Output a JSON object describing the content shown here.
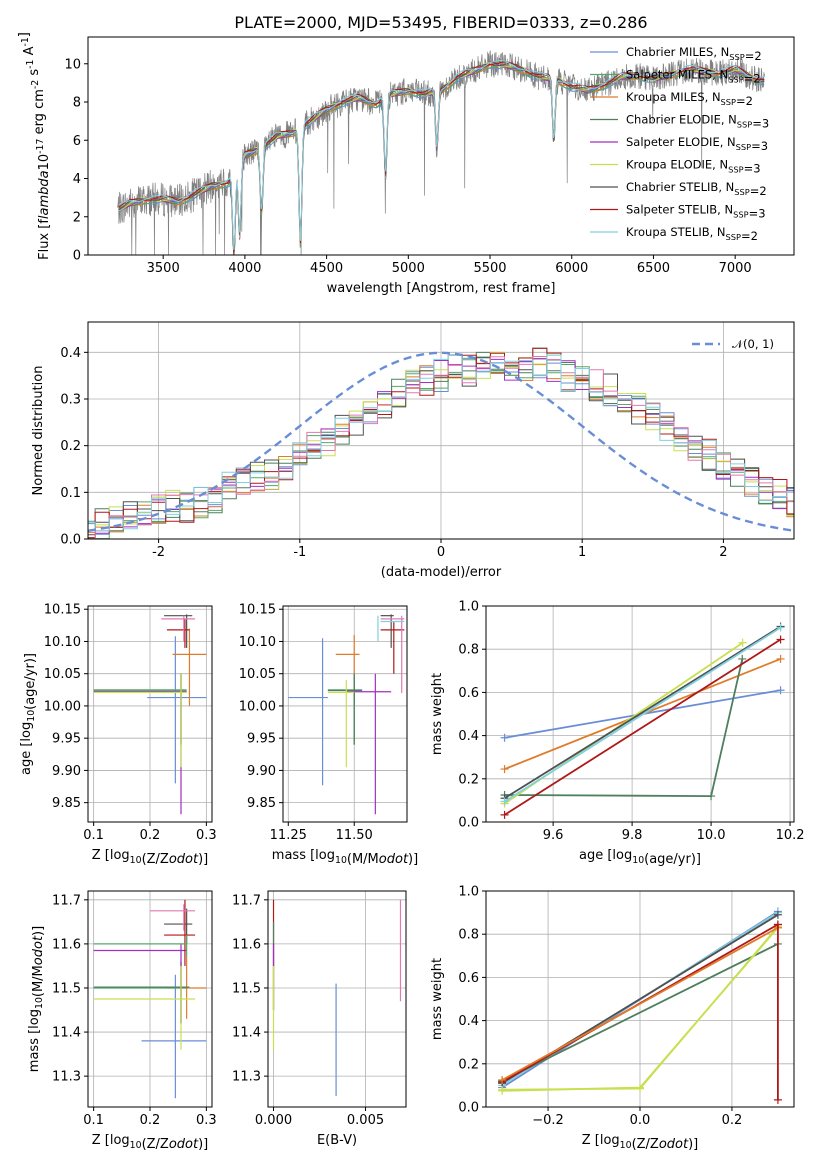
{
  "chart_data": [
    {
      "id": "spectrum",
      "type": "line",
      "title": "PLATE=2000, MJD=53495, FIBERID=0333, z=0.286",
      "xlabel": "wavelength [Angstrom, rest frame]",
      "ylabel": "Flux [f$_\\lambda$10$^{-17}$ erg cm$^{-2}$ s$^{-1}$ A$^{-1}$]",
      "xlim": [
        3040,
        7360
      ],
      "ylim": [
        0,
        11.4
      ],
      "xticks": [
        3500,
        4000,
        4500,
        5000,
        5500,
        6000,
        6500,
        7000
      ],
      "yticks": [
        0,
        2,
        4,
        6,
        8,
        10
      ],
      "grid": false,
      "legend_position": "upper-right",
      "data_color": "#808080",
      "data_profile": {
        "x": [
          3230,
          3300,
          3400,
          3500,
          3600,
          3700,
          3800,
          3900,
          4000,
          4100,
          4200,
          4300,
          4400,
          4500,
          4600,
          4700,
          4800,
          4900,
          5000,
          5100,
          5200,
          5300,
          5400,
          5500,
          5600,
          5700,
          5800,
          5900,
          6000,
          6100,
          6200,
          6300,
          6400,
          6500,
          6600,
          6700,
          6800,
          6900,
          7000,
          7100,
          7180
        ],
        "y": [
          2.4,
          2.7,
          2.9,
          2.9,
          2.8,
          3.2,
          3.6,
          3.8,
          5.2,
          5.6,
          6.2,
          6.4,
          7.0,
          7.6,
          8.0,
          8.2,
          7.9,
          8.4,
          8.6,
          8.4,
          8.6,
          9.3,
          9.6,
          10.0,
          9.9,
          9.7,
          9.3,
          9.2,
          8.8,
          8.6,
          8.9,
          9.3,
          9.4,
          9.2,
          9.4,
          9.7,
          9.6,
          9.5,
          9.7,
          9.3,
          9.1
        ]
      },
      "series": [
        {
          "name": "Chabrier MILES, N$_{SSP}$=2",
          "color": "#6a8ed6",
          "lw": 1.0
        },
        {
          "name": "Salpeter MILES, N$_{SSP}$=2",
          "color": "#55a868",
          "lw": 1.0
        },
        {
          "name": "Kroupa MILES, N$_{SSP}$=2",
          "color": "#e07b2a",
          "lw": 1.0
        },
        {
          "name": "Chabrier ELODIE, N$_{SSP}$=3",
          "color": "#4e7f5e",
          "lw": 0.8
        },
        {
          "name": "Salpeter ELODIE, N$_{SSP}$=3",
          "color": "#a030c0",
          "lw": 0.8
        },
        {
          "name": "Kroupa ELODIE, N$_{SSP}$=3",
          "color": "#c8e050",
          "lw": 0.8
        },
        {
          "name": "Chabrier STELIB, N$_{SSP}$=2",
          "color": "#505050",
          "lw": 0.8
        },
        {
          "name": "Salpeter STELIB, N$_{SSP}$=3",
          "color": "#b01818",
          "lw": 1.0
        },
        {
          "name": "Kroupa STELIB, N$_{SSP}$=2",
          "color": "#80d0e0",
          "lw": 1.0
        }
      ]
    },
    {
      "id": "residual_hist",
      "type": "line",
      "xlabel": "(data-model)/error",
      "ylabel": "Normed distribution",
      "xlim": [
        -2.5,
        2.5
      ],
      "ylim": [
        0,
        0.465
      ],
      "xticks": [
        -2,
        -1,
        0,
        1,
        2
      ],
      "yticks": [
        0.0,
        0.1,
        0.2,
        0.3,
        0.4
      ],
      "grid": true,
      "legend_position": "upper-right",
      "gaussian": {
        "name": "$\\mathcal{N}(0,1)$",
        "mean": 0,
        "sigma": 1,
        "color": "#6a8ed6"
      },
      "bin_width": 0.1,
      "bin_start": -2.55,
      "base_hist": [
        0.03,
        0.03,
        0.04,
        0.05,
        0.06,
        0.06,
        0.07,
        0.07,
        0.08,
        0.09,
        0.11,
        0.12,
        0.13,
        0.14,
        0.16,
        0.18,
        0.2,
        0.21,
        0.23,
        0.25,
        0.27,
        0.29,
        0.31,
        0.33,
        0.34,
        0.35,
        0.36,
        0.36,
        0.37,
        0.37,
        0.36,
        0.37,
        0.38,
        0.37,
        0.35,
        0.34,
        0.33,
        0.32,
        0.3,
        0.28,
        0.26,
        0.24,
        0.22,
        0.2,
        0.18,
        0.16,
        0.14,
        0.12,
        0.11,
        0.1,
        0.08,
        0.07
      ],
      "series": [
        {
          "color": "#6a8ed6"
        },
        {
          "color": "#e07b2a"
        },
        {
          "color": "#55a868"
        },
        {
          "color": "#4e7f5e"
        },
        {
          "color": "#a030c0"
        },
        {
          "color": "#c8e050"
        },
        {
          "color": "#505050"
        },
        {
          "color": "#b01818"
        },
        {
          "color": "#e07ab0"
        },
        {
          "color": "#80d0e0"
        }
      ]
    },
    {
      "id": "age_vs_Z",
      "type": "scatter",
      "xlabel": "Z [log$_{10}$(Z/Z$_\\odot$)]",
      "ylabel": "age  [log$_{10}$(age/yr)]",
      "xlim": [
        0.09,
        0.31
      ],
      "ylim": [
        9.82,
        10.155
      ],
      "xticks": [
        0.1,
        0.2,
        0.3
      ],
      "yticks": [
        9.85,
        9.9,
        9.95,
        10.0,
        10.05,
        10.1,
        10.15
      ],
      "grid": true,
      "points": [
        {
          "x": 0.245,
          "xerr": [
            0.195,
            0.3
          ],
          "y": 10.013,
          "yerr": [
            9.88,
            10.108
          ],
          "color": "#6a8ed6"
        },
        {
          "x": 0.27,
          "xerr": [
            0.24,
            0.3
          ],
          "y": 10.08,
          "yerr": [
            10.0,
            10.12
          ],
          "color": "#e07b2a"
        },
        {
          "x": 0.255,
          "xerr": [
            0.1,
            0.265
          ],
          "y": 10.025,
          "yerr": [
            9.94,
            10.05
          ],
          "color": "#55a868"
        },
        {
          "x": 0.255,
          "xerr": [
            0.1,
            0.265
          ],
          "y": 10.023,
          "yerr": [
            9.94,
            10.05
          ],
          "color": "#4e7f5e"
        },
        {
          "x": 0.255,
          "xerr": [
            0.1,
            0.265
          ],
          "y": 10.022,
          "yerr": [
            9.832,
            10.05
          ],
          "color": "#a030c0"
        },
        {
          "x": 0.255,
          "xerr": [
            0.1,
            0.265
          ],
          "y": 10.021,
          "yerr": [
            9.905,
            10.05
          ],
          "color": "#c8e050"
        },
        {
          "x": 0.265,
          "xerr": [
            0.225,
            0.275
          ],
          "y": 10.14,
          "yerr": [
            10.09,
            10.142
          ],
          "color": "#505050"
        },
        {
          "x": 0.262,
          "xerr": [
            0.23,
            0.27
          ],
          "y": 10.118,
          "yerr": [
            10.09,
            10.135
          ],
          "color": "#b01818"
        },
        {
          "x": 0.26,
          "xerr": [
            0.22,
            0.28
          ],
          "y": 10.135,
          "yerr": [
            10.1,
            10.14
          ],
          "color": "#e07ab0"
        }
      ]
    },
    {
      "id": "age_vs_mass",
      "type": "scatter",
      "xlabel": "mass [log$_{10}$(M/M$_\\odot$)]",
      "xlim": [
        11.23,
        11.7
      ],
      "ylim": [
        9.82,
        10.155
      ],
      "xticks": [
        11.25,
        11.5
      ],
      "yticks": [
        9.85,
        9.9,
        9.95,
        10.0,
        10.05,
        10.1,
        10.15
      ],
      "grid": true,
      "points": [
        {
          "x": 11.38,
          "xerr": [
            11.25,
            11.4
          ],
          "y": 10.013,
          "yerr": [
            9.877,
            10.105
          ],
          "color": "#6a8ed6"
        },
        {
          "x": 11.5,
          "xerr": [
            11.43,
            11.52
          ],
          "y": 10.08,
          "yerr": [
            10.0,
            10.11
          ],
          "color": "#e07b2a"
        },
        {
          "x": 11.5,
          "xerr": [
            11.4,
            11.53
          ],
          "y": 10.025,
          "yerr": [
            9.94,
            10.05
          ],
          "color": "#55a868"
        },
        {
          "x": 11.5,
          "xerr": [
            11.4,
            11.53
          ],
          "y": 10.024,
          "yerr": [
            9.94,
            10.05
          ],
          "color": "#4e7f5e"
        },
        {
          "x": 11.58,
          "xerr": [
            11.47,
            11.64
          ],
          "y": 10.022,
          "yerr": [
            9.832,
            10.05
          ],
          "color": "#a030c0"
        },
        {
          "x": 11.47,
          "xerr": [
            11.4,
            11.5
          ],
          "y": 10.021,
          "yerr": [
            9.905,
            10.04
          ],
          "color": "#c8e050"
        },
        {
          "x": 11.64,
          "xerr": [
            11.6,
            11.65
          ],
          "y": 10.14,
          "yerr": [
            10.09,
            10.142
          ],
          "color": "#505050"
        },
        {
          "x": 11.65,
          "xerr": [
            11.6,
            11.69
          ],
          "y": 10.118,
          "yerr": [
            10.05,
            10.13
          ],
          "color": "#b01818"
        },
        {
          "x": 11.68,
          "xerr": [
            11.6,
            11.69
          ],
          "y": 10.135,
          "yerr": [
            10.02,
            10.14
          ],
          "color": "#e07ab0"
        },
        {
          "x": 11.59,
          "xerr": [
            11.6,
            11.69
          ],
          "y": 10.131,
          "yerr": [
            10.1,
            10.14
          ],
          "color": "#80d0e0"
        }
      ]
    },
    {
      "id": "weight_vs_age",
      "type": "line",
      "xlabel": "age  [log$_{10}$(age/yr)]",
      "ylabel": "mass weight",
      "xlim": [
        9.43,
        10.21
      ],
      "ylim": [
        0,
        1.0
      ],
      "xticks": [
        9.6,
        9.8,
        10.0,
        10.2
      ],
      "yticks": [
        0.0,
        0.2,
        0.4,
        0.6,
        0.8,
        1.0
      ],
      "grid": true,
      "series": [
        {
          "x": [
            9.477,
            10.176
          ],
          "y": [
            0.39,
            0.61
          ],
          "color": "#6a8ed6"
        },
        {
          "x": [
            9.477,
            10.176
          ],
          "y": [
            0.245,
            0.755
          ],
          "color": "#e07b2a"
        },
        {
          "x": [
            9.477,
            10.0,
            10.079
          ],
          "y": [
            0.125,
            0.12,
            0.755
          ],
          "color": "#4e7f5e"
        },
        {
          "x": [
            9.477,
            10.08
          ],
          "y": [
            0.085,
            0.83
          ],
          "color": "#c8e050"
        },
        {
          "x": [
            9.477,
            10.176
          ],
          "y": [
            0.11,
            0.905
          ],
          "color": "#505050"
        },
        {
          "x": [
            9.477,
            10.176
          ],
          "y": [
            0.095,
            0.9
          ],
          "color": "#80d0e0"
        },
        {
          "x": [
            9.477,
            10.176
          ],
          "y": [
            0.033,
            0.845
          ],
          "color": "#b01818"
        }
      ]
    },
    {
      "id": "mass_vs_Z",
      "type": "scatter",
      "xlabel": "Z [log$_{10}$(Z/Z$_\\odot$)]",
      "ylabel": "mass [log$_{10}$(M/M$_\\odot$)]",
      "xlim": [
        0.09,
        0.31
      ],
      "ylim": [
        11.23,
        11.72
      ],
      "xticks": [
        0.1,
        0.2,
        0.3
      ],
      "yticks": [
        11.3,
        11.4,
        11.5,
        11.6,
        11.7
      ],
      "grid": true,
      "points": [
        {
          "x": 0.245,
          "xerr": [
            0.185,
            0.3
          ],
          "y": 11.38,
          "yerr": [
            11.25,
            11.53
          ],
          "color": "#6a8ed6"
        },
        {
          "x": 0.265,
          "xerr": [
            0.23,
            0.3
          ],
          "y": 11.5,
          "yerr": [
            11.43,
            11.57
          ],
          "color": "#e07b2a"
        },
        {
          "x": 0.255,
          "xerr": [
            0.1,
            0.265
          ],
          "y": 11.5,
          "yerr": [
            11.42,
            11.56
          ],
          "color": "#55a868"
        },
        {
          "x": 0.255,
          "xerr": [
            0.1,
            0.27
          ],
          "y": 11.502,
          "yerr": [
            11.42,
            11.56
          ],
          "color": "#4e7f5e"
        },
        {
          "x": 0.255,
          "xerr": [
            0.1,
            0.265
          ],
          "y": 11.585,
          "yerr": [
            11.42,
            11.6
          ],
          "color": "#a030c0"
        },
        {
          "x": 0.255,
          "xerr": [
            0.1,
            0.28
          ],
          "y": 11.475,
          "yerr": [
            11.36,
            11.55
          ],
          "color": "#c8e050"
        },
        {
          "x": 0.265,
          "xerr": [
            0.225,
            0.275
          ],
          "y": 11.645,
          "yerr": [
            11.6,
            11.68
          ],
          "color": "#505050"
        },
        {
          "x": 0.262,
          "xerr": [
            0.225,
            0.28
          ],
          "y": 11.62,
          "yerr": [
            11.55,
            11.7
          ],
          "color": "#b01818"
        },
        {
          "x": 0.26,
          "xerr": [
            0.2,
            0.28
          ],
          "y": 11.675,
          "yerr": [
            11.63,
            11.69
          ],
          "color": "#e07ab0"
        },
        {
          "x": 0.265,
          "xerr": [
            0.1,
            0.265
          ],
          "y": 11.6,
          "yerr": [
            11.57,
            11.62
          ],
          "color": "#55a868"
        }
      ]
    },
    {
      "id": "mass_vs_ebv",
      "type": "scatter",
      "xlabel": "E(B-V)",
      "xlim": [
        -0.0003,
        0.0072
      ],
      "ylim": [
        11.23,
        11.72
      ],
      "xticks": [
        0.0,
        0.005
      ],
      "yticks": [
        11.3,
        11.4,
        11.5,
        11.6,
        11.7
      ],
      "grid": true,
      "points": [
        {
          "x": 0.0,
          "y": 11.55,
          "yerr": [
            11.45,
            11.7
          ],
          "color": "#b01818"
        },
        {
          "x": 0.0,
          "y": 11.55,
          "yerr": [
            11.45,
            11.65
          ],
          "color": "#4e7f5e"
        },
        {
          "x": 0.0,
          "y": 11.47,
          "yerr": [
            11.36,
            11.55
          ],
          "color": "#c8e050"
        },
        {
          "x": 0.0,
          "y": 11.58,
          "yerr": [
            11.55,
            11.6
          ],
          "color": "#a030c0"
        },
        {
          "x": 0.0034,
          "y": 11.38,
          "yerr": [
            11.255,
            11.51
          ],
          "color": "#6a8ed6"
        },
        {
          "x": 0.0069,
          "y": 11.585,
          "yerr": [
            11.47,
            11.7
          ],
          "color": "#e07ab0"
        }
      ]
    },
    {
      "id": "weight_vs_Z",
      "type": "line",
      "xlabel": "Z [log$_{10}$(Z/Z$_\\odot$)]",
      "ylabel": "mass weight",
      "xlim": [
        -0.335,
        0.335
      ],
      "ylim": [
        0,
        1.0
      ],
      "xticks": [
        -0.2,
        0.0,
        0.2
      ],
      "yticks": [
        0.0,
        0.2,
        0.4,
        0.6,
        0.8,
        1.0
      ],
      "grid": true,
      "series": [
        {
          "x": [
            -0.3,
            0.3
          ],
          "y": [
            0.09,
            0.905
          ],
          "color": "#6a8ed6"
        },
        {
          "x": [
            -0.3,
            0.3
          ],
          "y": [
            0.1,
            0.9
          ],
          "color": "#80d0e0"
        },
        {
          "x": [
            -0.3,
            0.3
          ],
          "y": [
            0.11,
            0.89
          ],
          "color": "#505050"
        },
        {
          "x": [
            -0.3,
            0.3
          ],
          "y": [
            0.12,
            0.755
          ],
          "color": "#4e7f5e"
        },
        {
          "x": [
            -0.3,
            0.0,
            0.3
          ],
          "y": [
            0.08,
            0.085,
            0.835
          ],
          "color": "#c8e050"
        },
        {
          "x": [
            -0.3,
            0.0,
            0.3
          ],
          "y": [
            0.075,
            0.09,
            0.83
          ],
          "color": "#c8e050"
        },
        {
          "x": [
            -0.3,
            0.3
          ],
          "y": [
            0.115,
            0.845
          ],
          "color": "#b01818"
        },
        {
          "x": [
            -0.3,
            0.3
          ],
          "y": [
            0.125,
            0.83
          ],
          "color": "#e07b2a"
        },
        {
          "x": [
            0.3,
            0.3
          ],
          "y": [
            0.033,
            0.845
          ],
          "color": "#b01818"
        }
      ]
    }
  ]
}
